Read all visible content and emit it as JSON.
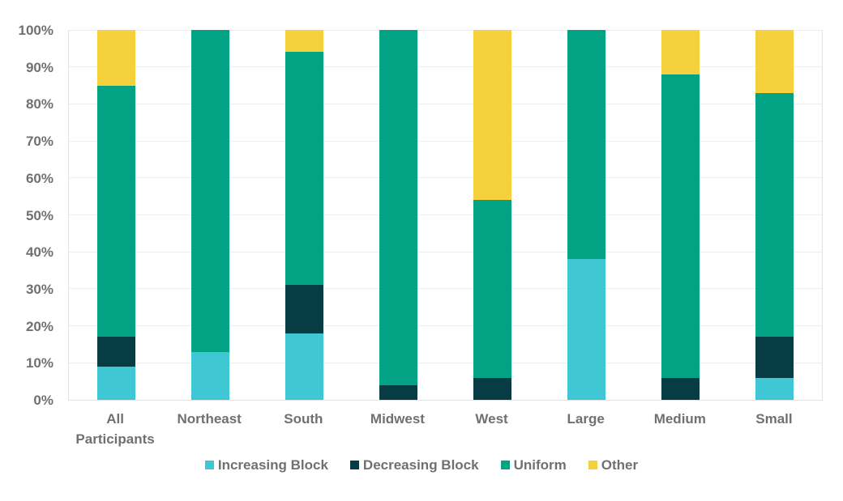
{
  "chart_data": {
    "type": "bar",
    "stacked": true,
    "units": "percent",
    "title": "",
    "xlabel": "",
    "ylabel": "",
    "ylim": [
      0,
      100
    ],
    "y_ticks": [
      0,
      10,
      20,
      30,
      40,
      50,
      60,
      70,
      80,
      90,
      100
    ],
    "y_tick_labels": [
      "0%",
      "10%",
      "20%",
      "30%",
      "40%",
      "50%",
      "60%",
      "70%",
      "80%",
      "90%",
      "100%"
    ],
    "grid": true,
    "legend_position": "bottom",
    "categories": [
      "All Participants",
      "Northeast",
      "South",
      "Midwest",
      "West",
      "Large",
      "Medium",
      "Small"
    ],
    "series": [
      {
        "name": "Increasing Block",
        "color": "#3fc7d3",
        "values": [
          9,
          13,
          18,
          0,
          0,
          38,
          0,
          6
        ]
      },
      {
        "name": "Decreasing Block",
        "color": "#073c44",
        "values": [
          8,
          0,
          13,
          4,
          6,
          0,
          6,
          11
        ]
      },
      {
        "name": "Uniform",
        "color": "#02a384",
        "values": [
          68,
          87,
          63,
          96,
          48,
          62,
          82,
          66
        ]
      },
      {
        "name": "Other",
        "color": "#f5d13e",
        "values": [
          15,
          0,
          6,
          0,
          46,
          0,
          12,
          17
        ]
      }
    ]
  },
  "styles": {
    "text_color": "#6f7072",
    "gridline_color": "#ededed",
    "axis_line_color": "#e2e2e2",
    "background": "#ffffff"
  }
}
